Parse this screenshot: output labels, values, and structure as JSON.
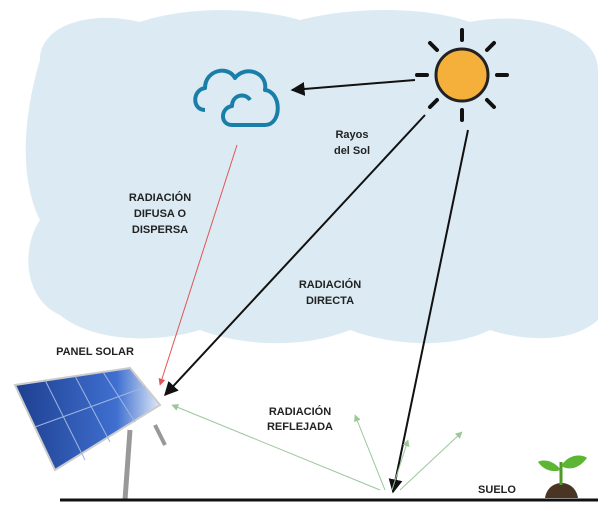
{
  "labels": {
    "rayos": [
      "Rayos",
      "del Sol"
    ],
    "difusa": [
      "RADIACIÓN",
      "DIFUSA O",
      "DISPERSA"
    ],
    "directa": [
      "RADIACIÓN",
      "DIRECTA"
    ],
    "panel": "PANEL SOLAR",
    "reflejada": [
      "RADIACIÓN",
      "REFLEJADA"
    ],
    "suelo": "SUELO"
  }
}
